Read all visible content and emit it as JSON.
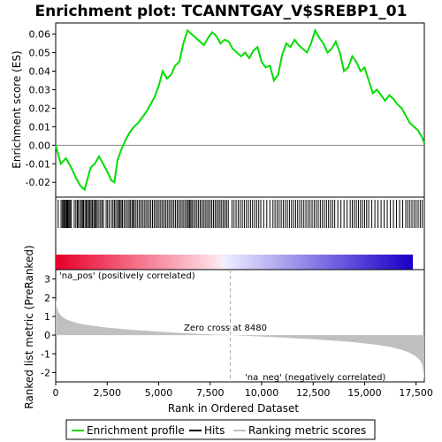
{
  "chart_data": {
    "type": "line",
    "title": "Enrichment plot: TCANNTGAY_V$SREBP1_01",
    "xlabel": "Rank in Ordered Dataset",
    "es_panel": {
      "ylabel": "Enrichment score (ES)",
      "ylim": [
        -0.028,
        0.066
      ],
      "yticks": [
        -0.02,
        -0.01,
        0.0,
        0.01,
        0.02,
        0.03,
        0.04,
        0.05,
        0.06
      ],
      "ytick_labels": [
        "-0.02",
        "-0.01",
        "0.00",
        "0.01",
        "0.02",
        "0.03",
        "0.04",
        "0.05",
        "0.06"
      ],
      "series": [
        {
          "name": "Enrichment profile",
          "color": "#00dd00",
          "x": [
            0,
            250,
            500,
            750,
            1000,
            1200,
            1400,
            1500,
            1700,
            1900,
            2100,
            2300,
            2500,
            2700,
            2850,
            3000,
            3200,
            3400,
            3600,
            3800,
            4000,
            4200,
            4400,
            4600,
            4800,
            5000,
            5200,
            5400,
            5600,
            5800,
            6000,
            6200,
            6400,
            6600,
            6800,
            7000,
            7200,
            7400,
            7600,
            7800,
            8000,
            8200,
            8400,
            8600,
            8800,
            9000,
            9200,
            9400,
            9600,
            9800,
            10000,
            10200,
            10400,
            10600,
            10800,
            11000,
            11200,
            11400,
            11600,
            11800,
            12000,
            12200,
            12400,
            12600,
            12800,
            13000,
            13200,
            13400,
            13600,
            13800,
            14000,
            14200,
            14400,
            14600,
            14800,
            15000,
            15200,
            15400,
            15600,
            15800,
            16000,
            16200,
            16400,
            16600,
            16800,
            17000,
            17200,
            17400,
            17600,
            17800,
            17900
          ],
          "y": [
            0.0,
            -0.01,
            -0.007,
            -0.012,
            -0.018,
            -0.022,
            -0.024,
            -0.02,
            -0.012,
            -0.01,
            -0.006,
            -0.01,
            -0.014,
            -0.019,
            -0.02,
            -0.008,
            -0.002,
            0.003,
            0.007,
            0.01,
            0.012,
            0.015,
            0.018,
            0.022,
            0.026,
            0.032,
            0.04,
            0.036,
            0.038,
            0.043,
            0.045,
            0.055,
            0.062,
            0.06,
            0.058,
            0.056,
            0.054,
            0.058,
            0.061,
            0.059,
            0.055,
            0.057,
            0.056,
            0.052,
            0.05,
            0.048,
            0.05,
            0.047,
            0.051,
            0.053,
            0.045,
            0.042,
            0.043,
            0.035,
            0.038,
            0.049,
            0.055,
            0.053,
            0.057,
            0.054,
            0.052,
            0.05,
            0.055,
            0.062,
            0.058,
            0.055,
            0.05,
            0.052,
            0.056,
            0.05,
            0.04,
            0.042,
            0.048,
            0.045,
            0.04,
            0.042,
            0.035,
            0.028,
            0.03,
            0.027,
            0.024,
            0.027,
            0.025,
            0.022,
            0.02,
            0.016,
            0.012,
            0.01,
            0.008,
            0.004,
            0.001
          ]
        }
      ]
    },
    "hits": [
      120,
      260,
      330,
      380,
      420,
      470,
      520,
      560,
      600,
      650,
      700,
      760,
      900,
      980,
      1050,
      1100,
      1180,
      1250,
      1300,
      1350,
      1420,
      1480,
      1540,
      1600,
      1660,
      1720,
      1780,
      1850,
      1900,
      1960,
      2020,
      2100,
      2180,
      2250,
      2320,
      2450,
      2520,
      2600,
      2700,
      2780,
      2850,
      2920,
      3000,
      3060,
      3120,
      3180,
      3240,
      3320,
      3400,
      3480,
      3560,
      3620,
      3700,
      3760,
      3820,
      3900,
      3980,
      4060,
      4140,
      4220,
      4300,
      4380,
      4460,
      4540,
      4620,
      4700,
      4780,
      4860,
      4940,
      5020,
      5100,
      5180,
      5260,
      5340,
      5420,
      5500,
      5580,
      5660,
      5740,
      5820,
      5900,
      5980,
      6060,
      6140,
      6220,
      6300,
      6380,
      6440,
      6500,
      6560,
      6620,
      6700,
      6780,
      6860,
      6940,
      7020,
      7100,
      7180,
      7260,
      7340,
      7420,
      7500,
      7580,
      7660,
      7740,
      7820,
      7900,
      7980,
      8060,
      8140,
      8220,
      8300,
      8380,
      8560,
      8660,
      8760,
      8860,
      8960,
      9060,
      9160,
      9260,
      9360,
      9460,
      9560,
      9660,
      9760,
      9860,
      9960,
      10100,
      10250,
      10400,
      10550,
      10650,
      10750,
      10850,
      10950,
      11050,
      11150,
      11250,
      11350,
      11450,
      11550,
      11650,
      11750,
      11850,
      11950,
      12050,
      12150,
      12250,
      12350,
      12450,
      12550,
      12650,
      12750,
      12850,
      12950,
      13050,
      13150,
      13250,
      13350,
      13450,
      13550,
      13700,
      13850,
      14000,
      14150,
      14300,
      14400,
      14500,
      14600,
      14700,
      14800,
      14900,
      15000,
      15100,
      15200,
      15350,
      15500,
      15650,
      15800,
      15950,
      16100,
      16250,
      16400,
      16550,
      16700,
      16850,
      17000,
      17100,
      17200,
      17300,
      17400,
      17500,
      17600,
      17700,
      17800
    ],
    "metric_panel": {
      "ylabel": "Ranked list metric (PreRanked)",
      "ylim": [
        -2.5,
        3.5
      ],
      "yticks": [
        -2,
        -1,
        0,
        1,
        2,
        3
      ],
      "ytick_labels": [
        "-2",
        "-1",
        "0",
        "1",
        "2",
        "3"
      ],
      "series_name": "Ranking metric scores",
      "fill_color": "#c0c0c0",
      "x": [
        0,
        50,
        150,
        300,
        500,
        800,
        1200,
        1800,
        2500,
        3500,
        4500,
        5500,
        6500,
        7500,
        8480,
        9500,
        10500,
        11500,
        12500,
        13500,
        14500,
        15500,
        16200,
        16800,
        17200,
        17500,
        17700,
        17800,
        17850,
        17900
      ],
      "y": [
        1.9,
        1.5,
        1.2,
        1.0,
        0.85,
        0.72,
        0.6,
        0.5,
        0.4,
        0.3,
        0.22,
        0.15,
        0.09,
        0.04,
        0.0,
        -0.05,
        -0.1,
        -0.16,
        -0.22,
        -0.3,
        -0.38,
        -0.5,
        -0.62,
        -0.78,
        -0.95,
        -1.15,
        -1.35,
        -1.6,
        -1.9,
        -2.4
      ]
    },
    "xlim": [
      0,
      17900
    ],
    "xticks": [
      0,
      2500,
      5000,
      7500,
      10000,
      12500,
      15000,
      17500
    ],
    "xtick_labels": [
      "0",
      "2,500",
      "5,000",
      "7,500",
      "10,000",
      "12,500",
      "15,000",
      "17,500"
    ],
    "zero_cross": 8480,
    "annotations": {
      "zero_cross": "Zero cross at 8480",
      "pos": "'na_pos' (positively correlated)",
      "neg": "'na_neg' (negatively correlated)"
    },
    "legend": {
      "placement": "bottom",
      "entries": [
        {
          "label": "Enrichment profile",
          "color": "#00dd00"
        },
        {
          "label": "Hits",
          "color": "#000000"
        },
        {
          "label": "Ranking metric scores",
          "color": "#c0c0c0"
        }
      ]
    },
    "colors": {
      "pos_label": "#cc0000",
      "neg_label": "#0000cc",
      "gradient_pos": "#e8002a",
      "gradient_neg": "#1a00c8"
    }
  }
}
